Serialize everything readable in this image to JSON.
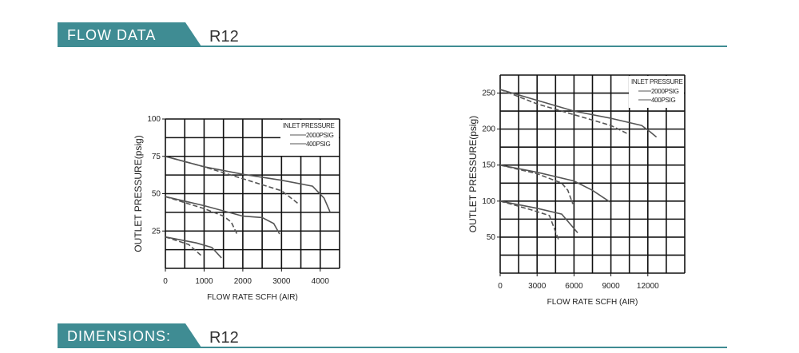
{
  "headers": [
    {
      "title": "FLOW DATA",
      "model": "R12"
    },
    {
      "title": "DIMENSIONS:",
      "model": "R12"
    }
  ],
  "chart_data": [
    {
      "type": "line",
      "x_label": "FLOW RATE SCFH (AIR)",
      "y_label": "OUTLET PRESSURE(psig)",
      "legend_title": "INLET PRESSURE",
      "xlim": [
        0,
        4500
      ],
      "ylim": [
        0,
        100
      ],
      "xticks": [
        0,
        1000,
        2000,
        3000,
        4000
      ],
      "yticks": [
        25,
        50,
        75,
        100
      ],
      "x_grid_step": 500,
      "y_grid_step": 12.5,
      "series": [
        {
          "name": "2000PSIG",
          "color": "#555555",
          "style": "solid",
          "curves": [
            {
              "x": [
                0,
                1000,
                2000,
                3000,
                3800,
                4100,
                4250
              ],
              "values": [
                75,
                68,
                63,
                59,
                55,
                47,
                38
              ]
            },
            {
              "x": [
                0,
                1000,
                2000,
                2500,
                2800,
                2950
              ],
              "values": [
                48,
                42,
                35,
                34,
                30,
                23
              ]
            },
            {
              "x": [
                0,
                800,
                1200,
                1450
              ],
              "values": [
                21,
                17,
                14,
                7
              ]
            }
          ]
        },
        {
          "name": "400PSIG",
          "color": "#555555",
          "style": "dashed",
          "curves": [
            {
              "x": [
                0,
                1000,
                2000,
                3000,
                3450
              ],
              "values": [
                75,
                68,
                60,
                52,
                43
              ]
            },
            {
              "x": [
                0,
                1000,
                1500,
                1700,
                1850
              ],
              "values": [
                48,
                40,
                35,
                31,
                23
              ]
            },
            {
              "x": [
                0,
                600,
                950
              ],
              "values": [
                21,
                16,
                8
              ]
            }
          ]
        }
      ]
    },
    {
      "type": "line",
      "x_label": "FLOW RATE SCFH (AIR)",
      "y_label": "OUTLET PRESSURE(psig)",
      "legend_title": "INLET PRESSURE",
      "xlim": [
        0,
        15000
      ],
      "ylim": [
        0,
        275
      ],
      "xticks": [
        0,
        3000,
        6000,
        9000,
        12000
      ],
      "yticks": [
        50,
        100,
        150,
        200,
        250
      ],
      "x_grid_step": 1500,
      "y_grid_step": 25,
      "series": [
        {
          "name": "2000PSIG",
          "color": "#555555",
          "style": "solid",
          "curves": [
            {
              "x": [
                0,
                3000,
                6000,
                9000,
                11500,
                12200,
                12700
              ],
              "values": [
                255,
                240,
                225,
                215,
                205,
                196,
                189
              ]
            },
            {
              "x": [
                0,
                3000,
                6000,
                7500,
                8900
              ],
              "values": [
                150,
                140,
                128,
                115,
                99
              ]
            },
            {
              "x": [
                0,
                3000,
                5000,
                6300
              ],
              "values": [
                100,
                90,
                82,
                56
              ]
            }
          ]
        },
        {
          "name": "400PSIG",
          "color": "#555555",
          "style": "dashed",
          "curves": [
            {
              "x": [
                0,
                3000,
                6000,
                9000,
                10300
              ],
              "values": [
                255,
                235,
                220,
                205,
                194
              ]
            },
            {
              "x": [
                0,
                3000,
                5000,
                5500,
                5900
              ],
              "values": [
                150,
                138,
                125,
                115,
                96
              ]
            },
            {
              "x": [
                0,
                2500,
                4000,
                4800
              ],
              "values": [
                100,
                88,
                80,
                44
              ]
            }
          ]
        }
      ]
    }
  ]
}
